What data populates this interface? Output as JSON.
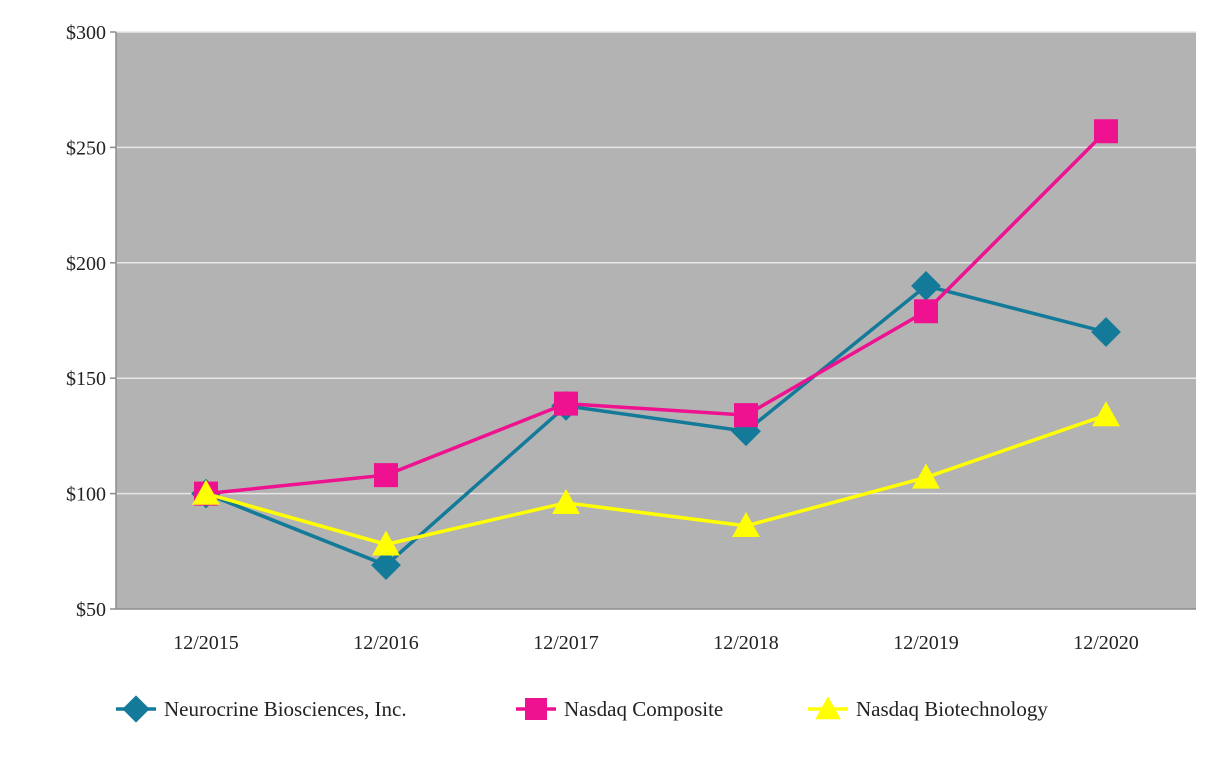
{
  "chart_data": {
    "type": "line",
    "title": "",
    "xlabel": "",
    "ylabel": "",
    "categories": [
      "12/2015",
      "12/2016",
      "12/2017",
      "12/2018",
      "12/2019",
      "12/2020"
    ],
    "ylim": [
      50,
      300
    ],
    "yticks": [
      50,
      100,
      150,
      200,
      250,
      300
    ],
    "ytick_labels": [
      "$50",
      "$100",
      "$150",
      "$200",
      "$250",
      "$300"
    ],
    "grid": true,
    "plot_background": "#b3b3b3",
    "legend_position": "bottom",
    "series": [
      {
        "name": "Neurocrine Biosciences, Inc.",
        "marker": "diamond",
        "color": "#137a99",
        "values": [
          100,
          69,
          138,
          127,
          190,
          170
        ]
      },
      {
        "name": "Nasdaq Composite",
        "marker": "square",
        "color": "#ee1190",
        "values": [
          100,
          108,
          139,
          134,
          179,
          257
        ]
      },
      {
        "name": "Nasdaq Biotechnology",
        "marker": "triangle",
        "color": "#ffff00",
        "values": [
          100,
          78,
          96,
          86,
          107,
          134
        ]
      }
    ]
  }
}
